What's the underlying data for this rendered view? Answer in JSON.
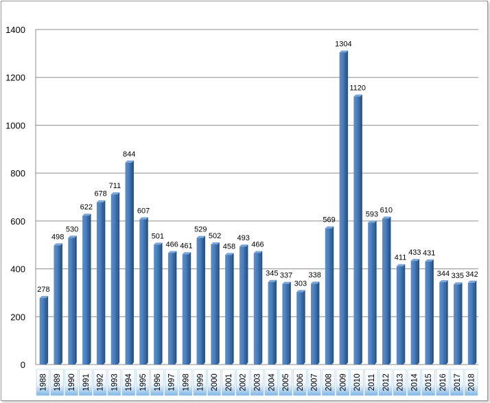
{
  "chart_data": {
    "type": "bar",
    "title": "",
    "xlabel": "",
    "ylabel": "",
    "ylim": [
      0,
      1400
    ],
    "yticks": [
      0,
      200,
      400,
      600,
      800,
      1000,
      1200,
      1400
    ],
    "grid": true,
    "legend": "none",
    "bar_color": "#4a7ebb",
    "categories": [
      "1988",
      "1989",
      "1990",
      "1991",
      "1992",
      "1993",
      "1994",
      "1995",
      "1996",
      "1997",
      "1998",
      "1999",
      "2000",
      "2001",
      "2002",
      "2003",
      "2004",
      "2005",
      "2006",
      "2007",
      "2008",
      "2009",
      "2010",
      "2011",
      "2012",
      "2013",
      "2014",
      "2015",
      "2016",
      "2017",
      "2018"
    ],
    "values": [
      278,
      498,
      530,
      622,
      678,
      711,
      844,
      607,
      501,
      466,
      461,
      529,
      502,
      458,
      493,
      466,
      345,
      337,
      303,
      338,
      569,
      1304,
      1120,
      593,
      610,
      411,
      433,
      431,
      344,
      335,
      342
    ]
  }
}
